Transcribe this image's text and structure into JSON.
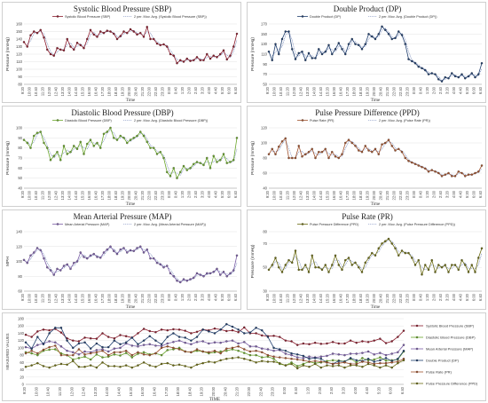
{
  "time_labels": [
    "9:20",
    "9:40",
    "10:00",
    "10:20",
    "10:40",
    "11:00",
    "11:20",
    "11:40",
    "12:00",
    "12:20",
    "12:40",
    "13:00",
    "13:20",
    "13:40",
    "14:00",
    "14:20",
    "14:40",
    "15:00",
    "15:20",
    "15:40",
    "16:00",
    "16:20",
    "16:40",
    "17:00",
    "17:20",
    "17:40",
    "18:00",
    "18:20",
    "18:40",
    "19:00",
    "19:20",
    "19:40",
    "20:00",
    "20:20",
    "20:40",
    "21:00",
    "21:20",
    "21:40",
    "22:00",
    "22:20",
    "22:40",
    "23:00",
    "23:20",
    "23:40",
    "0:00",
    "0:20",
    "0:40",
    "1:00",
    "1:20",
    "1:40",
    "2:00",
    "2:20",
    "2:40",
    "3:00",
    "3:20",
    "3:40",
    "4:00",
    "4:20",
    "4:40",
    "5:00",
    "5:20",
    "5:40",
    "6:00",
    "6:20",
    "6:40"
  ],
  "chart_data": [
    {
      "type": "line",
      "id": "sbp",
      "title": "Systolic Blood Pressure (SBP)",
      "xlabel": "Time",
      "ylabel": "Pressure (mmHg)",
      "ylim": [
        80,
        160
      ],
      "yticks": [
        80,
        90,
        100,
        110,
        120,
        130,
        140,
        150,
        160
      ],
      "color": "#8b1a2b",
      "legend": [
        "Systolic Blood Pressure (SBP)",
        "2 per. Mov. Avg. (Systolic Blood Pressure (SBP))"
      ],
      "series": [
        {
          "name": "Systolic Blood Pressure (SBP)",
          "values": [
            136,
            130,
            145,
            150,
            148,
            152,
            142,
            126,
            120,
            118,
            128,
            126,
            125,
            140,
            130,
            126,
            135,
            132,
            128,
            140,
            152,
            146,
            143,
            150,
            148,
            151,
            150,
            147,
            140,
            144,
            150,
            148,
            153,
            150,
            146,
            148,
            143,
            156,
            140,
            140,
            134,
            132,
            133,
            130,
            120,
            118,
            108,
            112,
            110,
            114,
            111,
            112,
            116,
            112,
            112,
            120,
            114,
            118,
            116,
            120,
            125,
            113,
            118,
            130,
            147
          ]
        }
      ]
    },
    {
      "type": "line",
      "id": "dp",
      "title": "Double Product (DP)",
      "xlabel": "Time",
      "ylabel": "Pressure (mmHg)",
      "ylim": [
        50,
        170
      ],
      "yticks": [
        50,
        70,
        90,
        110,
        130,
        150,
        170
      ],
      "color": "#1f3e6e",
      "legend": [
        "Double Product (DP)",
        "2 per. Mov. Avg. (Double Product (DP))"
      ],
      "series": [
        {
          "name": "Double Product (DP)",
          "values": [
            115,
            98,
            130,
            110,
            140,
            155,
            155,
            120,
            100,
            112,
            115,
            98,
            112,
            102,
            102,
            120,
            110,
            115,
            128,
            110,
            120,
            132,
            120,
            110,
            130,
            140,
            130,
            128,
            120,
            130,
            150,
            145,
            140,
            150,
            165,
            158,
            150,
            140,
            142,
            155,
            148,
            130,
            100,
            96,
            92,
            85,
            82,
            78,
            70,
            72,
            70,
            60,
            56,
            64,
            62,
            72,
            66,
            64,
            70,
            62,
            66,
            72,
            64,
            70,
            92
          ]
        }
      ]
    },
    {
      "type": "line",
      "id": "dbp",
      "title": "Diastolic Blood Pressure (DBP)",
      "xlabel": "Time",
      "ylabel": "Pressure (mmHg)",
      "ylim": [
        40,
        100
      ],
      "yticks": [
        40,
        50,
        60,
        70,
        80,
        90,
        100
      ],
      "color": "#6aa62a",
      "legend": [
        "Diastolic Blood Pressure (DBP)",
        "2 per. Mov. Avg. (Diastolic Blood Pressure (DBP))"
      ],
      "series": [
        {
          "name": "Diastolic Blood Pressure (DBP)",
          "values": [
            88,
            85,
            80,
            92,
            95,
            96,
            85,
            80,
            68,
            72,
            76,
            68,
            82,
            74,
            76,
            82,
            79,
            86,
            74,
            84,
            88,
            82,
            85,
            80,
            94,
            96,
            100,
            90,
            88,
            92,
            90,
            85,
            88,
            90,
            92,
            96,
            92,
            86,
            80,
            80,
            74,
            76,
            70,
            56,
            52,
            60,
            50,
            56,
            62,
            58,
            60,
            64,
            66,
            65,
            63,
            70,
            60,
            72,
            66,
            68,
            74,
            65,
            66,
            68,
            90
          ]
        }
      ]
    },
    {
      "type": "line",
      "id": "ppd",
      "title": "Pulse Pressure Difference (PPD)",
      "xlabel": "Time",
      "ylabel": "Pressure (mmHg)",
      "ylim": [
        40,
        120
      ],
      "yticks": [
        40,
        60,
        80,
        100,
        120
      ],
      "color": "#a0522d",
      "legend": [
        "Pulse Rate (PR)",
        "2 per. Mov. Avg. (Pulse Rate (PR))"
      ],
      "series": [
        {
          "name": "Pulse Rate (PR)",
          "values": [
            85,
            92,
            85,
            95,
            102,
            106,
            80,
            80,
            80,
            96,
            82,
            85,
            88,
            92,
            80,
            88,
            88,
            92,
            80,
            88,
            82,
            80,
            85,
            100,
            104,
            100,
            96,
            90,
            88,
            96,
            90,
            88,
            92,
            85,
            98,
            100,
            104,
            96,
            90,
            92,
            88,
            80,
            76,
            74,
            72,
            70,
            68,
            66,
            62,
            64,
            62,
            60,
            56,
            58,
            60,
            56,
            56,
            62,
            60,
            56,
            58,
            58,
            60,
            62,
            70
          ]
        }
      ]
    },
    {
      "type": "line",
      "id": "map",
      "title": "Mean Arterial Pressure (MAP)",
      "xlabel": "Time",
      "ylabel": "MPH",
      "ylim": [
        60,
        140
      ],
      "yticks": [
        60,
        80,
        100,
        120,
        140
      ],
      "color": "#7b5ea7",
      "legend": [
        "Mean Arterial Pressure (MAP)",
        "2 per. Mov. Avg. (Mean Arterial Pressure (MAP))"
      ],
      "series": [
        {
          "name": "Mean Arterial Pressure (MAP)",
          "values": [
            102,
            98,
            108,
            112,
            118,
            115,
            104,
            92,
            88,
            82,
            90,
            88,
            94,
            96,
            90,
            98,
            100,
            112,
            106,
            104,
            108,
            110,
            106,
            105,
            112,
            116,
            120,
            114,
            110,
            116,
            118,
            112,
            115,
            114,
            118,
            120,
            112,
            116,
            104,
            104,
            98,
            96,
            92,
            94,
            84,
            80,
            74,
            72,
            76,
            74,
            76,
            78,
            84,
            82,
            80,
            84,
            84,
            86,
            90,
            82,
            86,
            80,
            84,
            88,
            108
          ]
        }
      ]
    },
    {
      "type": "line",
      "id": "pr",
      "title": "Pulse Rate (PR)",
      "xlabel": "Time",
      "ylabel": "Pressure (mmHg)",
      "ylim": [
        30,
        80
      ],
      "yticks": [
        30,
        50,
        70,
        80
      ],
      "color": "#6b6b12",
      "legend": [
        "Pulse Pressure Difference (PPD)",
        "2 per. Mov. Avg. (Pulse Pressure Difference (PPD))"
      ],
      "series": [
        {
          "name": "Pulse Pressure Difference (PPD)",
          "values": [
            48,
            52,
            58,
            50,
            46,
            52,
            56,
            54,
            64,
            48,
            48,
            52,
            46,
            60,
            50,
            50,
            48,
            52,
            46,
            52,
            60,
            52,
            48,
            56,
            58,
            52,
            54,
            50,
            46,
            54,
            58,
            62,
            60,
            66,
            70,
            72,
            74,
            70,
            66,
            60,
            64,
            62,
            62,
            58,
            52,
            56,
            44,
            52,
            48,
            56,
            46,
            52,
            50,
            52,
            46,
            52,
            52,
            48,
            56,
            52,
            46,
            52,
            46,
            58,
            66
          ]
        }
      ]
    },
    {
      "type": "line",
      "id": "combined",
      "title": "",
      "xlabel": "TIME",
      "ylabel": "MEASURED VALUES",
      "ylim": [
        0,
        180
      ],
      "yticks": [
        0,
        20,
        40,
        60,
        80,
        100,
        120,
        140,
        160,
        180
      ],
      "legend_position": "right",
      "series": [
        {
          "name": "Systolic Blood Pressure (SBP)",
          "color": "#8b1a2b",
          "ref": "sbp"
        },
        {
          "name": "Diastolic Blood Pressure (DBP)",
          "color": "#6aa62a",
          "ref": "dbp"
        },
        {
          "name": "Mean Arterial Pressure (MAP)",
          "color": "#7b5ea7",
          "ref": "map"
        },
        {
          "name": "Double Product (DP)",
          "color": "#1f3e6e",
          "ref": "dp"
        },
        {
          "name": "Pulse Rate (PR)",
          "color": "#a0522d",
          "ref": "ppd"
        },
        {
          "name": "Pulse Pressure Difference (PPD)",
          "color": "#6b6b12",
          "ref": "pr"
        }
      ]
    }
  ]
}
